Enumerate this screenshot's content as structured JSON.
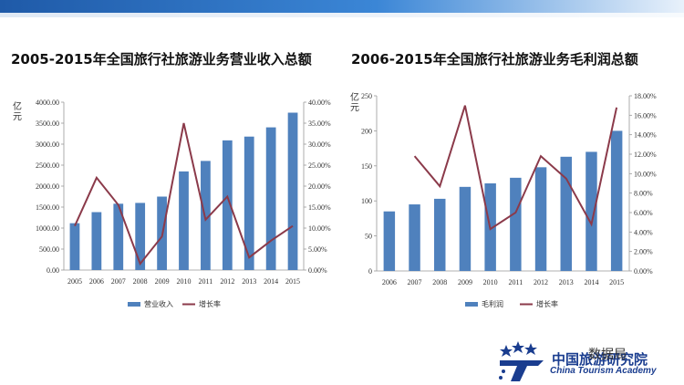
{
  "chart_data": [
    {
      "type": "bar",
      "title": "2005-2015年全国旅行社旅游业务营业收入总额",
      "unit_label": "亿元",
      "categories": [
        "2005",
        "2006",
        "2007",
        "2008",
        "2009",
        "2010",
        "2011",
        "2012",
        "2013",
        "2014",
        "2015"
      ],
      "series": [
        {
          "name": "营业收入",
          "type": "bar",
          "axis": "left",
          "color": "#4f81bd",
          "values": [
            1116,
            1380,
            1580,
            1600,
            1750,
            2350,
            2600,
            3090,
            3180,
            3400,
            3750
          ]
        },
        {
          "name": "增长率",
          "type": "line",
          "axis": "right",
          "color": "#8b3a4a",
          "values": [
            0.105,
            0.22,
            0.155,
            0.015,
            0.08,
            0.35,
            0.12,
            0.175,
            0.03,
            0.07,
            0.105
          ]
        }
      ],
      "left_axis": {
        "min": 0,
        "max": 4000,
        "step": 500,
        "format": "fixed2"
      },
      "right_axis": {
        "min": 0,
        "max": 0.4,
        "step": 0.05,
        "format": "pct2"
      }
    },
    {
      "type": "bar",
      "title": "2006-2015年全国旅行社旅游业务毛利润总额",
      "unit_label": "亿元",
      "categories": [
        "2006",
        "2007",
        "2008",
        "2009",
        "2010",
        "2011",
        "2012",
        "2013",
        "2014",
        "2015"
      ],
      "series": [
        {
          "name": "毛利润",
          "type": "bar",
          "axis": "left",
          "color": "#4f81bd",
          "values": [
            85,
            95,
            103,
            120,
            125,
            133,
            148,
            163,
            170,
            200
          ]
        },
        {
          "name": "增长率",
          "type": "line",
          "axis": "right",
          "color": "#8b3a4a",
          "values": [
            null,
            0.118,
            0.087,
            0.17,
            0.043,
            0.06,
            0.118,
            0.095,
            0.048,
            0.168
          ]
        }
      ],
      "left_axis": {
        "min": 0,
        "max": 250,
        "step": 50,
        "format": "int"
      },
      "right_axis": {
        "min": 0,
        "max": 0.18,
        "step": 0.02,
        "format": "pct2"
      }
    }
  ],
  "watermark": "数据局",
  "logo": {
    "name_cn": "中国旅游研究院",
    "name_en": "China Tourism Academy"
  }
}
